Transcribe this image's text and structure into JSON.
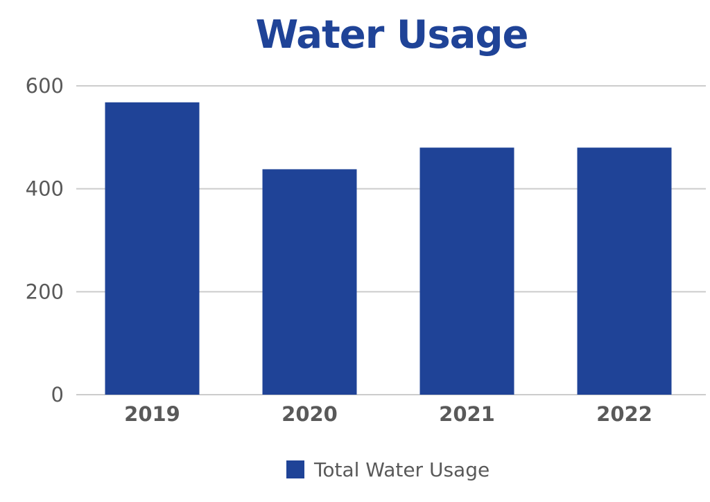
{
  "chart_data": {
    "type": "bar",
    "title": "Water Usage",
    "categories": [
      "2019",
      "2020",
      "2021",
      "2022"
    ],
    "series": [
      {
        "name": "Total Water Usage",
        "values": [
          568,
          438,
          480,
          480
        ]
      }
    ],
    "ylim": [
      0,
      600
    ],
    "yticks": [
      "0",
      "200",
      "400",
      "600"
    ],
    "grid": true,
    "legend_position": "bottom",
    "colors": {
      "bar": "#1f4397",
      "title": "#1f4397",
      "grid": "#cccccc",
      "text": "#595959"
    }
  }
}
